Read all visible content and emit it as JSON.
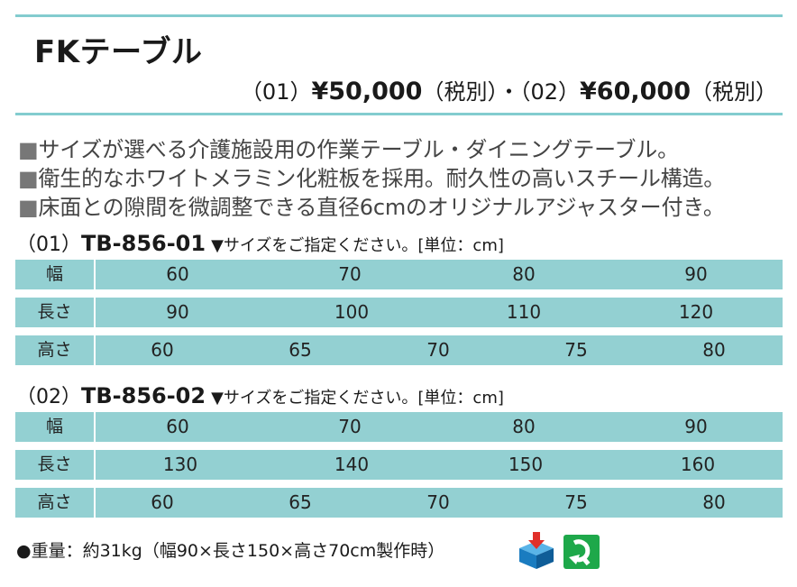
{
  "title": "FKテーブル",
  "price": {
    "p01_code": "（01）",
    "p01_amount": "¥50,000",
    "p01_tax": "（税別）・",
    "p02_code": "（02）",
    "p02_amount": "¥60,000",
    "p02_tax": "（税別）"
  },
  "features": [
    "サイズが選べる介護施設用の作業テーブル・ダイニングテーブル。",
    "衛生的なホワイトメラミン化粧板を採用。耐久性の高いスチール構造。",
    "床面との隙間を微調整できる直径6cmのオリジナルアジャスター付き。"
  ],
  "feature_bullet": "■",
  "models": [
    {
      "prefix": "（01）",
      "code": "TB-856-01",
      "note": "▼サイズをご指定ください。[単位：cm]",
      "rows": [
        {
          "label": "幅",
          "values": [
            "60",
            "70",
            "80",
            "90"
          ]
        },
        {
          "label": "長さ",
          "values": [
            "90",
            "100",
            "110",
            "120"
          ]
        },
        {
          "label": "高さ",
          "values": [
            "60",
            "65",
            "70",
            "75",
            "80"
          ]
        }
      ]
    },
    {
      "prefix": "（02）",
      "code": "TB-856-02",
      "note": "▼サイズをご指定ください。[単位：cm]",
      "rows": [
        {
          "label": "幅",
          "values": [
            "60",
            "70",
            "80",
            "90"
          ]
        },
        {
          "label": "長さ",
          "values": [
            "130",
            "140",
            "150",
            "160"
          ]
        },
        {
          "label": "高さ",
          "values": [
            "60",
            "65",
            "70",
            "75",
            "80"
          ]
        }
      ]
    }
  ],
  "spec": "●重量：約31kg（幅90×長さ150×高さ70cm製作時）",
  "icons": [
    "shipping-box-icon",
    "green-return-icon"
  ],
  "colors": {
    "accent": "#83cccf",
    "row_bg": "#93d0d2",
    "icon_blue": "#1a8ad0",
    "icon_red": "#e0302a",
    "icon_green": "#1ea84a"
  }
}
